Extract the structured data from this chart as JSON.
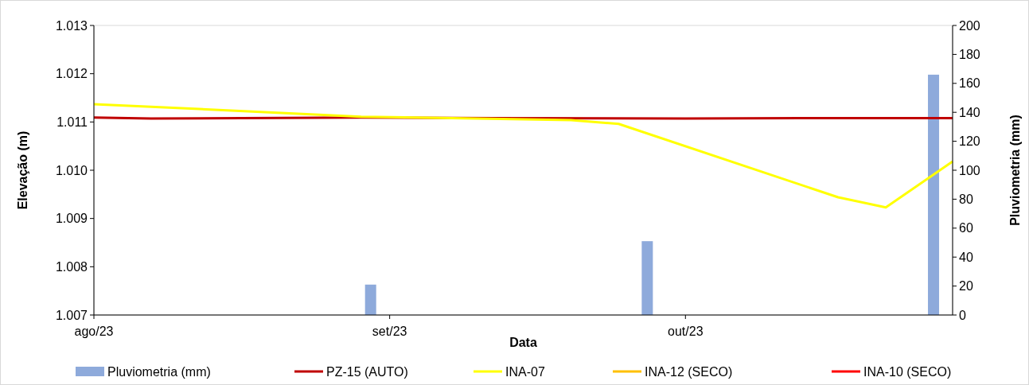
{
  "chart_data": {
    "type": "line",
    "xlabel": "Data",
    "ylabel": "Elevação (m)",
    "y2label": "Pluviometria (mm)",
    "xlim": [
      "2023-08-01",
      "2023-10-30"
    ],
    "xticks": [
      {
        "value": "2023-08-01",
        "label": "ago/23"
      },
      {
        "value": "2023-09-01",
        "label": "set/23"
      },
      {
        "value": "2023-10-02",
        "label": "out/23"
      }
    ],
    "ylim": [
      1.007,
      1.013
    ],
    "yticks": [
      1.007,
      1.008,
      1.009,
      {
        "value": 1.01,
        "label": "1.010"
      },
      1.011,
      1.012,
      1.013
    ],
    "y2lim": [
      0,
      200
    ],
    "y2ticks": [
      0,
      20,
      40,
      60,
      80,
      100,
      120,
      140,
      160,
      180,
      200
    ],
    "grid": false,
    "legend": "bottom",
    "series": [
      {
        "name": "Pluviometria (mm)",
        "type": "bar",
        "axis": "y2",
        "color": "#8eaadb",
        "x": [
          "2023-08-30",
          "2023-09-28",
          "2023-10-28"
        ],
        "values": [
          21,
          51,
          166
        ]
      },
      {
        "name": "PZ-15 (AUTO)",
        "color": "#c00000",
        "x": [
          "2023-08-01",
          "2023-08-07",
          "2023-08-29",
          "2023-09-12",
          "2023-10-02",
          "2023-10-14",
          "2023-10-30"
        ],
        "values": [
          1.01109,
          1.01107,
          1.01109,
          1.01108,
          1.01107,
          1.01108,
          1.01108
        ]
      },
      {
        "name": "INA-07",
        "color": "#ffff00",
        "x": [
          "2023-08-01",
          "2023-08-29",
          "2023-09-20",
          "2023-09-25",
          "2023-10-18",
          "2023-10-23",
          "2023-10-30"
        ],
        "values": [
          1.01137,
          1.01111,
          1.01104,
          1.01096,
          1.00944,
          1.00923,
          1.01018
        ]
      },
      {
        "name": "INA-12 (SECO)",
        "color": "#ffc000"
      },
      {
        "name": "INA-10 (SECO)",
        "color": "#ff0000"
      }
    ]
  }
}
